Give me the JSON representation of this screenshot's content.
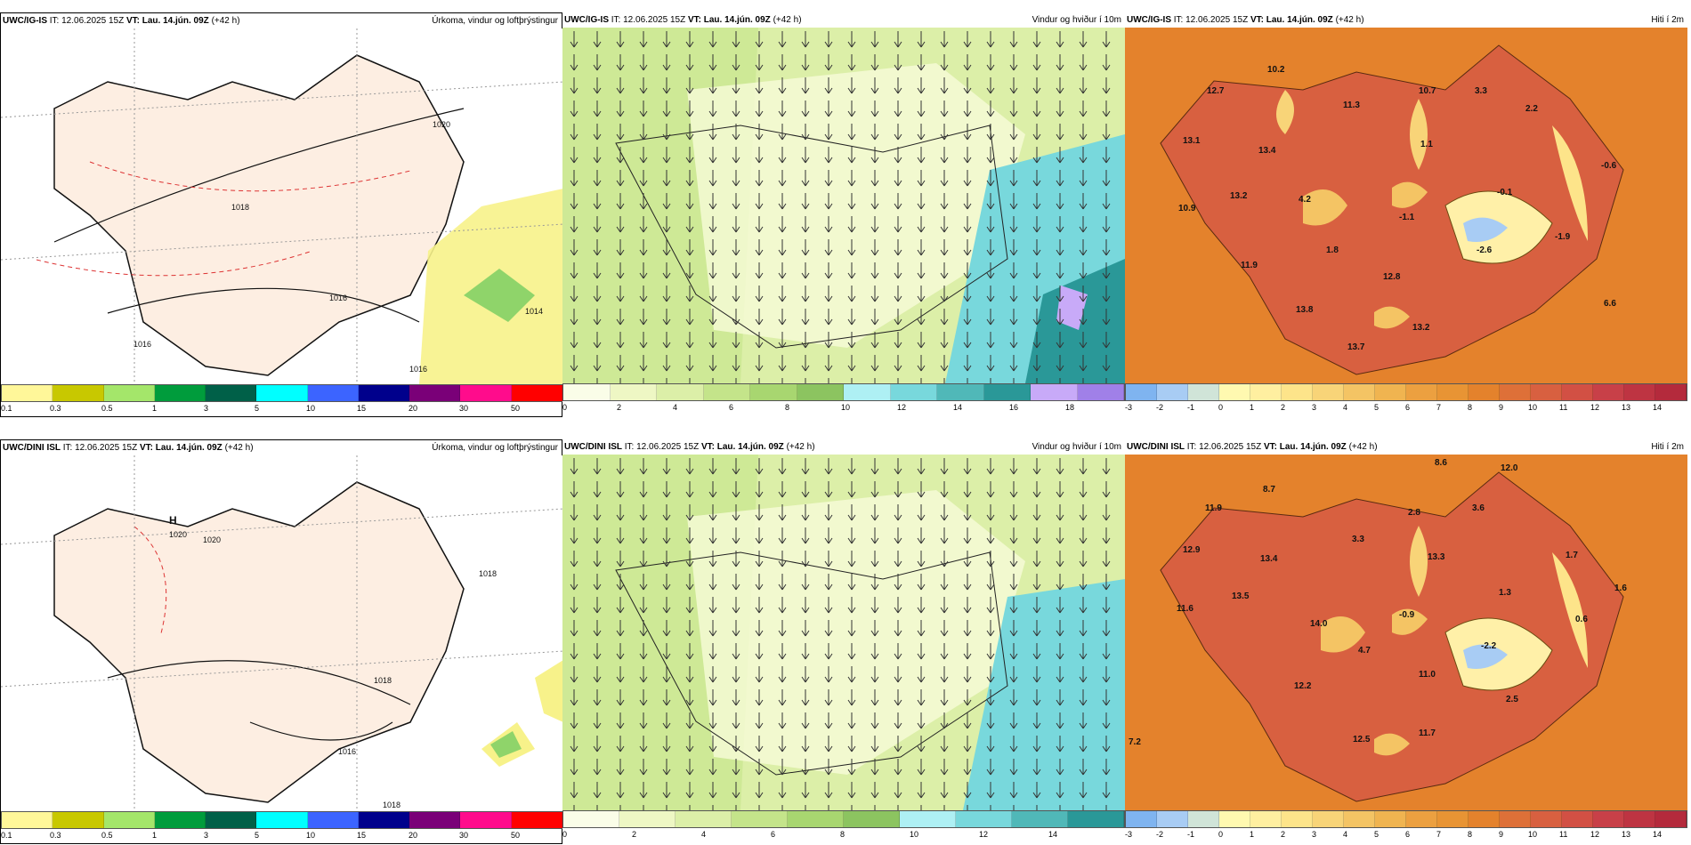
{
  "panels": [
    {
      "id": "p1",
      "model": "UWC/IG-IS",
      "it_label": "IT:",
      "it_value": "12.06.2025 15Z",
      "vt_label": "VT:",
      "vt_value": "Lau. 14.jún. 09Z",
      "lead": "(+42 h)",
      "title": "Úrkoma, vindur og loftþrýstingur",
      "legend_ticks": [
        "0.1",
        "0.3",
        "0.5",
        "1",
        "3",
        "5",
        "10",
        "15",
        "20",
        "30",
        "50"
      ],
      "legend_colors": [
        "#fff799",
        "#c8c800",
        "#a4e66a",
        "#009c3c",
        "#006048",
        "#00ffff",
        "#3c64ff",
        "#00008c",
        "#7a0078",
        "#ff0c8c",
        "#ff0000"
      ],
      "contour_labels": [
        "1018",
        "1016",
        "1020",
        "1016",
        "1014",
        "1016"
      ]
    },
    {
      "id": "p2",
      "model": "UWC/IG-IS",
      "it_label": "IT:",
      "it_value": "12.06.2025 15Z",
      "vt_label": "VT:",
      "vt_value": "Lau. 14.jún. 09Z",
      "lead": "(+42 h)",
      "title": "Vindur og hviður í 10m",
      "legend_ticks": [
        "0",
        "2",
        "4",
        "6",
        "8",
        "10",
        "12",
        "14",
        "16",
        "18"
      ],
      "legend_colors": [
        "#fafde8",
        "#eef7c4",
        "#dcefa8",
        "#c4e48a",
        "#a8d670",
        "#8cc460",
        "#aef0f4",
        "#78d8dc",
        "#50b8b8",
        "#2a9898",
        "#c8aaf8",
        "#a080e8"
      ]
    },
    {
      "id": "p3",
      "model": "UWC/IG-IS",
      "it_label": "IT:",
      "it_value": "12.06.2025 15Z",
      "vt_label": "VT:",
      "vt_value": "Lau. 14.jún. 09Z",
      "lead": "(+42 h)",
      "title": "Hiti í 2m",
      "legend_ticks": [
        "-3",
        "-2",
        "-1",
        "0",
        "1",
        "2",
        "3",
        "4",
        "5",
        "6",
        "7",
        "8",
        "9",
        "10",
        "11",
        "12",
        "13",
        "14"
      ],
      "legend_colors": [
        "#7fb4f0",
        "#a8ccf4",
        "#d0e4d8",
        "#fff9b0",
        "#ffefa0",
        "#fde48a",
        "#f8d478",
        "#f4c464",
        "#f0b450",
        "#eca040",
        "#e89434",
        "#e4822c",
        "#de7038",
        "#d86040",
        "#d25044",
        "#c84048",
        "#be3442",
        "#b42a3c"
      ],
      "temp_labels": [
        "10.2",
        "12.7",
        "11.3",
        "10.7",
        "3.3",
        "2.2",
        "13.1",
        "13.4",
        "1.1",
        "-0.6",
        "10.9",
        "13.2",
        "4.2",
        "-0.1",
        "-1.1",
        "1.8",
        "-2.6",
        "-1.9",
        "11.9",
        "12.8",
        "13.8",
        "13.2",
        "13.7",
        "6.6"
      ]
    },
    {
      "id": "p4",
      "model": "UWC/DINI ISL",
      "it_label": "IT:",
      "it_value": "12.06.2025 15Z",
      "vt_label": "VT:",
      "vt_value": "Lau. 14.jún. 09Z",
      "lead": "(+42 h)",
      "title": "Úrkoma, vindur og loftþrýstingur",
      "legend_ticks": [
        "0.1",
        "0.3",
        "0.5",
        "1",
        "3",
        "5",
        "10",
        "15",
        "20",
        "30",
        "50"
      ],
      "legend_colors": [
        "#fff799",
        "#c8c800",
        "#a4e66a",
        "#009c3c",
        "#006048",
        "#00ffff",
        "#3c64ff",
        "#00008c",
        "#7a0078",
        "#ff0c8c",
        "#ff0000"
      ],
      "contour_labels": [
        "H",
        "1020",
        "1020",
        "1018",
        "1018",
        "1016",
        "1018"
      ]
    },
    {
      "id": "p5",
      "model": "UWC/DINI ISL",
      "it_label": "IT:",
      "it_value": "12.06.2025 15Z",
      "vt_label": "VT:",
      "vt_value": "Lau. 14.jún. 09Z",
      "lead": "(+42 h)",
      "title": "Vindur og hviður í 10m",
      "legend_ticks": [
        "0",
        "2",
        "4",
        "6",
        "8",
        "10",
        "12",
        "14"
      ],
      "legend_colors": [
        "#fafde8",
        "#eef7c4",
        "#dcefa8",
        "#c4e48a",
        "#a8d670",
        "#8cc460",
        "#aef0f4",
        "#78d8dc",
        "#50b8b8",
        "#2a9898"
      ]
    },
    {
      "id": "p6",
      "model": "UWC/DINI ISL",
      "it_label": "IT:",
      "it_value": "12.06.2025 15Z",
      "vt_label": "VT:",
      "vt_value": "Lau. 14.jún. 09Z",
      "lead": "(+42 h)",
      "title": "Hiti í 2m",
      "legend_ticks": [
        "-3",
        "-2",
        "-1",
        "0",
        "1",
        "2",
        "3",
        "4",
        "5",
        "6",
        "7",
        "8",
        "9",
        "10",
        "11",
        "12",
        "13",
        "14"
      ],
      "legend_colors": [
        "#7fb4f0",
        "#a8ccf4",
        "#d0e4d8",
        "#fff9b0",
        "#ffefa0",
        "#fde48a",
        "#f8d478",
        "#f4c464",
        "#f0b450",
        "#eca040",
        "#e89434",
        "#e4822c",
        "#de7038",
        "#d86040",
        "#d25044",
        "#c84048",
        "#be3442",
        "#b42a3c"
      ],
      "temp_labels": [
        "8.6",
        "12.0",
        "8.7",
        "11.9",
        "2.8",
        "3.6",
        "3.3",
        "12.9",
        "13.4",
        "13.3",
        "1.7",
        "11.6",
        "13.5",
        "1.3",
        "1.6",
        "14.0",
        "-0.9",
        "0.6",
        "4.7",
        "-2.2",
        "12.2",
        "11.0",
        "2.5",
        "12.5",
        "11.7",
        "7.2"
      ]
    }
  ]
}
